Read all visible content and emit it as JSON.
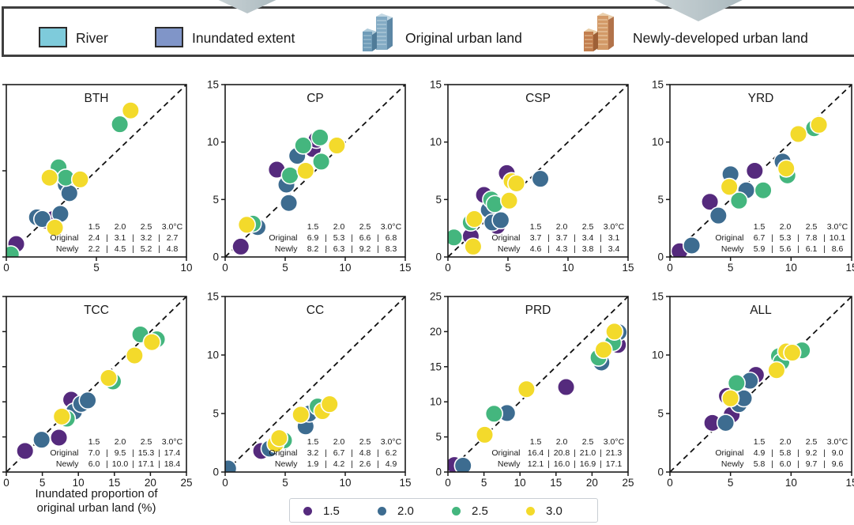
{
  "top_legend": {
    "items": [
      {
        "label": "River",
        "color": "#7ecbdb"
      },
      {
        "label": "Inundated extent",
        "color": "#8095c8"
      },
      {
        "label": "Original urban land"
      },
      {
        "label": "Newly-developed urban land"
      }
    ]
  },
  "bottom_legend": {
    "items": [
      {
        "label": "1.5"
      },
      {
        "label": "2.0"
      },
      {
        "label": "2.5"
      },
      {
        "label": "3.0"
      }
    ]
  },
  "colors": {
    "1.5": "#552a7d",
    "2.0": "#3d6c90",
    "2.5": "#44b67e",
    "3.0": "#f3da2b",
    "axis": "#1a1a1a",
    "diamond_light": "#ccd5d8",
    "diamond_dark": "#a9b8bd"
  },
  "axis": {
    "x_label_line1": "Inundated proportion of",
    "x_label_line2": "original urban land (%)"
  },
  "chart_data": [
    {
      "type": "scatter",
      "title": "BTH",
      "xlim": [
        0,
        10
      ],
      "ylim": [
        0,
        10
      ],
      "ticks": [
        0,
        5,
        10
      ],
      "table": {
        "header": [
          "1.5",
          "2.0",
          "2.5",
          "3.0°C"
        ],
        "rows": [
          [
            "Original",
            "2.4",
            "3.1",
            "3.2",
            "2.7"
          ],
          [
            "Newly",
            "2.2",
            "4.5",
            "5.2",
            "4.8"
          ]
        ]
      },
      "series": [
        {
          "temp": "1.5",
          "points": [
            [
              0.55,
              0.75
            ],
            [
              2.2,
              2.1
            ],
            [
              2.6,
              2.2
            ]
          ]
        },
        {
          "temp": "2.0",
          "points": [
            [
              1.7,
              2.3
            ],
            [
              2.0,
              2.2
            ],
            [
              3.0,
              2.5
            ],
            [
              3.3,
              4.2
            ],
            [
              3.5,
              3.7
            ]
          ]
        },
        {
          "temp": "2.5",
          "points": [
            [
              0.25,
              0.15
            ],
            [
              2.9,
              5.2
            ],
            [
              3.3,
              4.6
            ],
            [
              6.3,
              7.7
            ]
          ]
        },
        {
          "temp": "3.0",
          "points": [
            [
              2.4,
              4.6
            ],
            [
              2.7,
              1.7
            ],
            [
              4.1,
              4.5
            ],
            [
              6.9,
              8.5
            ]
          ]
        }
      ]
    },
    {
      "type": "scatter",
      "title": "CP",
      "xlim": [
        0,
        15
      ],
      "ylim": [
        0,
        15
      ],
      "ticks": [
        0,
        5,
        10,
        15
      ],
      "table": {
        "header": [
          "1.5",
          "2.0",
          "2.5",
          "3.0°C"
        ],
        "rows": [
          [
            "Original",
            "6.9",
            "5.3",
            "6.6",
            "6.8"
          ],
          [
            "Newly",
            "8.2",
            "6.3",
            "9.2",
            "8.3"
          ]
        ]
      },
      "series": [
        {
          "temp": "1.5",
          "points": [
            [
              1.3,
              0.9
            ],
            [
              4.3,
              7.6
            ],
            [
              7.3,
              9.4
            ],
            [
              7.6,
              10.2
            ]
          ]
        },
        {
          "temp": "2.0",
          "points": [
            [
              2.7,
              2.6
            ],
            [
              5.3,
              4.7
            ],
            [
              5.1,
              6.3
            ],
            [
              6.0,
              8.8
            ]
          ]
        },
        {
          "temp": "2.5",
          "points": [
            [
              2.3,
              2.9
            ],
            [
              5.4,
              7.1
            ],
            [
              6.5,
              9.7
            ],
            [
              7.9,
              10.4
            ],
            [
              8.0,
              8.3
            ]
          ]
        },
        {
          "temp": "3.0",
          "points": [
            [
              1.8,
              2.8
            ],
            [
              6.7,
              7.5
            ],
            [
              9.3,
              9.7
            ]
          ]
        }
      ]
    },
    {
      "type": "scatter",
      "title": "CSP",
      "xlim": [
        0,
        15
      ],
      "ylim": [
        0,
        15
      ],
      "ticks": [
        0,
        5,
        10,
        15
      ],
      "table": {
        "header": [
          "1.5",
          "2.0",
          "2.5",
          "3.0°C"
        ],
        "rows": [
          [
            "Original",
            "3.7",
            "3.7",
            "3.4",
            "3.1"
          ],
          [
            "Newly",
            "4.6",
            "4.3",
            "3.8",
            "3.4"
          ]
        ]
      },
      "series": [
        {
          "temp": "1.5",
          "points": [
            [
              1.9,
              1.8
            ],
            [
              3.0,
              5.4
            ],
            [
              4.9,
              7.3
            ],
            [
              4.1,
              2.7
            ]
          ]
        },
        {
          "temp": "2.0",
          "points": [
            [
              3.4,
              4.1
            ],
            [
              3.7,
              3.0
            ],
            [
              7.7,
              6.8
            ],
            [
              4.4,
              3.2
            ]
          ]
        },
        {
          "temp": "2.5",
          "points": [
            [
              0.5,
              1.7
            ],
            [
              1.9,
              3.0
            ],
            [
              3.6,
              5.0
            ],
            [
              3.9,
              4.6
            ]
          ]
        },
        {
          "temp": "3.0",
          "points": [
            [
              2.1,
              0.9
            ],
            [
              2.2,
              3.3
            ],
            [
              5.3,
              6.6
            ],
            [
              5.7,
              6.4
            ],
            [
              5.1,
              4.9
            ]
          ]
        }
      ]
    },
    {
      "type": "scatter",
      "title": "YRD",
      "xlim": [
        0,
        15
      ],
      "ylim": [
        0,
        15
      ],
      "ticks": [
        0,
        5,
        10,
        15
      ],
      "table": {
        "header": [
          "1.5",
          "2.0",
          "2.5",
          "3.0°C"
        ],
        "rows": [
          [
            "Original",
            "6.7",
            "5.3",
            "7.8",
            "10.1"
          ],
          [
            "Newly",
            "5.9",
            "5.6",
            "6.1",
            "8.6"
          ]
        ]
      },
      "series": [
        {
          "temp": "1.5",
          "points": [
            [
              0.8,
              0.5
            ],
            [
              3.3,
              4.8
            ],
            [
              7.0,
              7.5
            ]
          ]
        },
        {
          "temp": "2.0",
          "points": [
            [
              1.8,
              1.0
            ],
            [
              4.0,
              3.6
            ],
            [
              5.0,
              7.2
            ],
            [
              6.3,
              5.8
            ],
            [
              9.3,
              8.3
            ]
          ]
        },
        {
          "temp": "2.5",
          "points": [
            [
              5.7,
              4.9
            ],
            [
              7.7,
              5.8
            ],
            [
              9.7,
              7.1
            ],
            [
              11.9,
              11.2
            ]
          ]
        },
        {
          "temp": "3.0",
          "points": [
            [
              4.9,
              6.1
            ],
            [
              9.6,
              7.7
            ],
            [
              10.6,
              10.7
            ],
            [
              12.3,
              11.5
            ]
          ]
        }
      ]
    },
    {
      "type": "scatter",
      "title": "TCC",
      "xlim": [
        0,
        25
      ],
      "ylim": [
        0,
        25
      ],
      "ticks": [
        0,
        5,
        10,
        15,
        20,
        25
      ],
      "table": {
        "header": [
          "1.5",
          "2.0",
          "2.5",
          "3.0°C"
        ],
        "rows": [
          [
            "Original",
            "7.0",
            "9.5",
            "15.3",
            "17.4"
          ],
          [
            "Newly",
            "6.0",
            "10.0",
            "17.1",
            "18.4"
          ]
        ]
      },
      "series": [
        {
          "temp": "1.5",
          "points": [
            [
              2.6,
              3.0
            ],
            [
              7.3,
              4.9
            ],
            [
              9.0,
              10.3
            ]
          ]
        },
        {
          "temp": "2.0",
          "points": [
            [
              4.9,
              4.6
            ],
            [
              9.4,
              8.6
            ],
            [
              10.4,
              9.7
            ],
            [
              11.3,
              10.2
            ]
          ]
        },
        {
          "temp": "2.5",
          "points": [
            [
              8.4,
              7.6
            ],
            [
              14.8,
              12.9
            ],
            [
              18.6,
              19.6
            ],
            [
              20.9,
              18.9
            ]
          ]
        },
        {
          "temp": "3.0",
          "points": [
            [
              7.7,
              7.9
            ],
            [
              14.2,
              13.4
            ],
            [
              17.8,
              16.6
            ],
            [
              20.2,
              18.5
            ]
          ]
        }
      ]
    },
    {
      "type": "scatter",
      "title": "CC",
      "xlim": [
        0,
        15
      ],
      "ylim": [
        0,
        15
      ],
      "ticks": [
        0,
        5,
        10,
        15
      ],
      "table": {
        "header": [
          "1.5",
          "2.0",
          "2.5",
          "3.0°C"
        ],
        "rows": [
          [
            "Original",
            "3.2",
            "6.7",
            "4.8",
            "6.2"
          ],
          [
            "Newly",
            "1.9",
            "4.2",
            "2.6",
            "4.9"
          ]
        ]
      },
      "series": [
        {
          "temp": "1.5",
          "points": [
            [
              3.0,
              1.8
            ]
          ]
        },
        {
          "temp": "2.0",
          "points": [
            [
              0.25,
              0.3
            ],
            [
              3.7,
              2.0
            ],
            [
              6.7,
              3.9
            ],
            [
              7.0,
              5.0
            ]
          ]
        },
        {
          "temp": "2.5",
          "points": [
            [
              4.9,
              2.7
            ],
            [
              7.7,
              5.6
            ]
          ]
        },
        {
          "temp": "3.0",
          "points": [
            [
              4.2,
              2.4
            ],
            [
              4.5,
              2.9
            ],
            [
              6.3,
              4.9
            ],
            [
              8.1,
              5.2
            ],
            [
              8.7,
              5.8
            ]
          ]
        }
      ]
    },
    {
      "type": "scatter",
      "title": "PRD",
      "xlim": [
        0,
        25
      ],
      "ylim": [
        0,
        25
      ],
      "ticks": [
        0,
        5,
        10,
        15,
        20,
        25
      ],
      "table": {
        "header": [
          "1.5",
          "2.0",
          "2.5",
          "3.0°C"
        ],
        "rows": [
          [
            "Original",
            "16.4",
            "20.8",
            "21.0",
            "21.3"
          ],
          [
            "Newly",
            "12.1",
            "16.0",
            "16.9",
            "17.1"
          ]
        ]
      },
      "series": [
        {
          "temp": "1.5",
          "points": [
            [
              0.9,
              1.0
            ],
            [
              16.4,
              12.1
            ],
            [
              23.6,
              18.1
            ]
          ]
        },
        {
          "temp": "2.0",
          "points": [
            [
              2.1,
              0.9
            ],
            [
              8.2,
              8.4
            ],
            [
              21.3,
              15.6
            ],
            [
              23.7,
              19.9
            ]
          ]
        },
        {
          "temp": "2.5",
          "points": [
            [
              6.4,
              8.3
            ],
            [
              20.9,
              16.3
            ],
            [
              22.9,
              18.4
            ]
          ]
        },
        {
          "temp": "3.0",
          "points": [
            [
              5.1,
              5.3
            ],
            [
              10.9,
              11.8
            ],
            [
              21.6,
              17.4
            ],
            [
              23.1,
              20.0
            ]
          ]
        }
      ]
    },
    {
      "type": "scatter",
      "title": "ALL",
      "xlim": [
        0,
        15
      ],
      "ylim": [
        0,
        15
      ],
      "ticks": [
        0,
        5,
        10,
        15
      ],
      "table": {
        "header": [
          "1.5",
          "2.0",
          "2.5",
          "3.0°C"
        ],
        "rows": [
          [
            "Original",
            "4.9",
            "5.8",
            "9.2",
            "9.0"
          ],
          [
            "Newly",
            "5.8",
            "6.0",
            "9.7",
            "9.6"
          ]
        ]
      },
      "series": [
        {
          "temp": "1.5",
          "points": [
            [
              3.5,
              4.2
            ],
            [
              4.7,
              6.5
            ],
            [
              5.1,
              4.9
            ],
            [
              7.1,
              8.3
            ]
          ]
        },
        {
          "temp": "2.0",
          "points": [
            [
              4.6,
              4.2
            ],
            [
              5.7,
              5.8
            ],
            [
              6.1,
              6.3
            ],
            [
              6.6,
              7.8
            ]
          ]
        },
        {
          "temp": "2.5",
          "points": [
            [
              5.5,
              7.6
            ],
            [
              9.0,
              9.9
            ],
            [
              9.2,
              9.4
            ],
            [
              10.9,
              10.4
            ]
          ]
        },
        {
          "temp": "3.0",
          "points": [
            [
              5.0,
              6.3
            ],
            [
              8.8,
              8.7
            ],
            [
              9.6,
              10.3
            ],
            [
              10.1,
              10.2
            ]
          ]
        }
      ]
    }
  ]
}
